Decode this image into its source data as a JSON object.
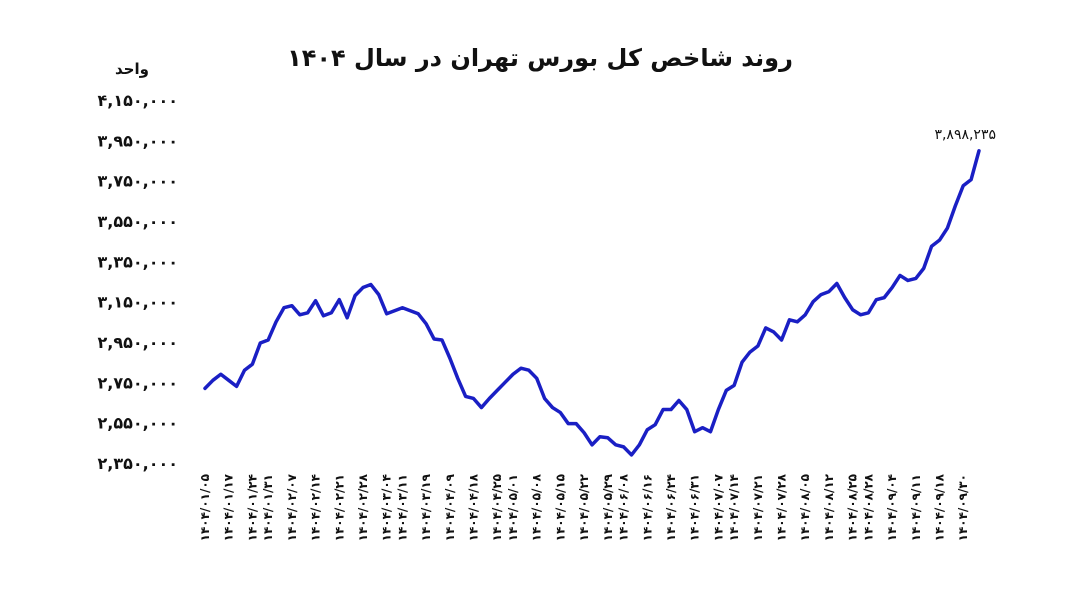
{
  "chart_data": {
    "type": "line",
    "title": "روند شاخص کل بورس تهران در سال ۱۴۰۴",
    "y_label": "واحد",
    "color": "#1a1fc4",
    "grid": false,
    "ylim": [
      2350000,
      4150000
    ],
    "yticks": [
      {
        "value": 2350000,
        "label": "۲,۳۵۰,۰۰۰"
      },
      {
        "value": 2550000,
        "label": "۲,۵۵۰,۰۰۰"
      },
      {
        "value": 2750000,
        "label": "۲,۷۵۰,۰۰۰"
      },
      {
        "value": 2950000,
        "label": "۲,۹۵۰,۰۰۰"
      },
      {
        "value": 3150000,
        "label": "۳,۱۵۰,۰۰۰"
      },
      {
        "value": 3350000,
        "label": "۳,۳۵۰,۰۰۰"
      },
      {
        "value": 3550000,
        "label": "۳,۵۵۰,۰۰۰"
      },
      {
        "value": 3750000,
        "label": "۳,۷۵۰,۰۰۰"
      },
      {
        "value": 3950000,
        "label": "۳,۹۵۰,۰۰۰"
      },
      {
        "value": 4150000,
        "label": "۴,۱۵۰,۰۰۰"
      }
    ],
    "categories": [
      "۱۴۰۴/۰۱/۰۵",
      null,
      null,
      "۱۴۰۴/۰۱/۱۷",
      null,
      null,
      "۱۴۰۴/۰۱/۲۴",
      null,
      "۱۴۰۴/۰۱/۳۱",
      null,
      null,
      "۱۴۰۴/۰۲/۰۷",
      null,
      null,
      "۱۴۰۴/۰۲/۱۴",
      null,
      null,
      "۱۴۰۴/۰۲/۲۱",
      null,
      null,
      "۱۴۰۴/۰۲/۲۸",
      null,
      null,
      "۱۴۰۴/۰۳/۰۴",
      null,
      "۱۴۰۴/۰۳/۱۱",
      null,
      null,
      "۱۴۰۴/۰۳/۱۹",
      null,
      null,
      "۱۴۰۴/۰۴/۰۹",
      null,
      null,
      "۱۴۰۴/۰۴/۱۸",
      null,
      null,
      "۱۴۰۴/۰۴/۲۵",
      null,
      "۱۴۰۴/۰۵/۰۱",
      null,
      null,
      "۱۴۰۴/۰۵/۰۸",
      null,
      null,
      "۱۴۰۴/۰۵/۱۵",
      null,
      null,
      "۱۴۰۴/۰۵/۲۲",
      null,
      null,
      "۱۴۰۴/۰۵/۲۹",
      null,
      "۱۴۰۴/۰۶/۰۸",
      null,
      null,
      "۱۴۰۴/۰۶/۱۶",
      null,
      null,
      "۱۴۰۴/۰۶/۲۴",
      null,
      null,
      "۱۴۰۴/۰۶/۳۱",
      null,
      null,
      "۱۴۰۴/۰۷/۰۷",
      null,
      "۱۴۰۴/۰۷/۱۴",
      null,
      null,
      "۱۴۰۴/۰۷/۲۱",
      null,
      null,
      "۱۴۰۴/۰۷/۲۸",
      null,
      null,
      "۱۴۰۴/۰۸/۰۵",
      null,
      null,
      "۱۴۰۴/۰۸/۱۲",
      null,
      null,
      "۱۴۰۴/۰۸/۲۵",
      null,
      "۱۴۰۴/۰۸/۲۸",
      null,
      null,
      "۱۴۰۴/۰۹/۰۴",
      null,
      null,
      "۱۴۰۴/۰۹/۱۱",
      null,
      null,
      "۱۴۰۴/۰۹/۱۸",
      null,
      null,
      "۱۴۰۴/۰۹/۳۰",
      null,
      null
    ],
    "values": [
      2720000,
      2760000,
      2790000,
      2760000,
      2730000,
      2810000,
      2840000,
      2945000,
      2960000,
      3050000,
      3120000,
      3130000,
      3085000,
      3095000,
      3155000,
      3080000,
      3095000,
      3160000,
      3070000,
      3180000,
      3220000,
      3235000,
      3185000,
      3090000,
      3105000,
      3120000,
      3105000,
      3090000,
      3040000,
      2965000,
      2960000,
      2870000,
      2770000,
      2680000,
      2670000,
      2625000,
      2670000,
      2710000,
      2750000,
      2790000,
      2820000,
      2810000,
      2770000,
      2670000,
      2625000,
      2600000,
      2545000,
      2545000,
      2500000,
      2440000,
      2480000,
      2475000,
      2440000,
      2430000,
      2390000,
      2440000,
      2515000,
      2540000,
      2615000,
      2615000,
      2660000,
      2615000,
      2505000,
      2525000,
      2505000,
      2615000,
      2710000,
      2735000,
      2850000,
      2900000,
      2930000,
      3020000,
      3000000,
      2960000,
      3060000,
      3050000,
      3085000,
      3150000,
      3185000,
      3200000,
      3240000,
      3170000,
      3110000,
      3085000,
      3095000,
      3160000,
      3170000,
      3220000,
      3280000,
      3255000,
      3265000,
      3315000,
      3425000,
      3455000,
      3515000,
      3625000,
      3725000,
      3755000,
      3898235
    ],
    "value_labels": [
      null,
      null,
      null,
      null,
      null,
      null,
      null,
      null,
      null,
      null,
      null,
      null,
      null,
      null,
      null,
      null,
      null,
      null,
      null,
      null,
      null,
      null,
      null,
      null,
      null,
      null,
      null,
      null,
      null,
      null,
      null,
      null,
      null,
      null,
      null,
      null,
      null,
      null,
      null,
      null,
      null,
      null,
      null,
      null,
      null,
      null,
      null,
      null,
      null,
      null,
      null,
      null,
      null,
      null,
      null,
      null,
      null,
      null,
      null,
      null,
      null,
      null,
      null,
      null,
      null,
      null,
      null,
      null,
      null,
      null,
      null,
      null,
      null,
      null,
      null,
      null,
      null,
      null,
      null,
      null,
      null,
      null,
      null,
      null,
      null,
      null,
      null,
      null,
      null,
      null,
      null,
      null,
      null,
      null,
      null,
      null,
      null,
      null,
      "۳,۸۹۸,۲۳۵"
    ]
  }
}
